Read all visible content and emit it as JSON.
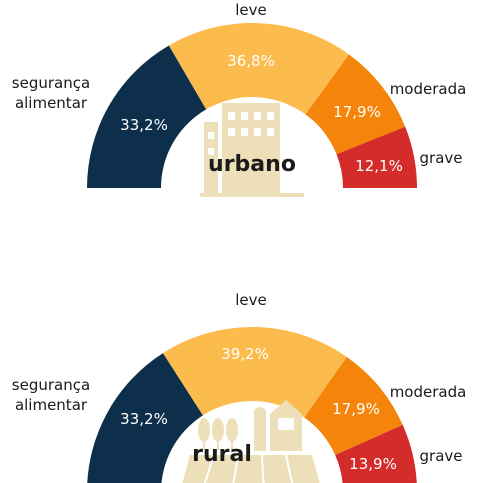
{
  "colors": {
    "seguranca_alimentar": "#0d2f4b",
    "leve": "#fbbb4d",
    "moderada": "#f4840a",
    "grave": "#d42c2a",
    "icon": "#eddfb7",
    "text_dark": "#1a1a1a",
    "text_light": "#ffffff"
  },
  "icons": {
    "urbano": "city-buildings-icon",
    "rural": "farm-field-icon"
  },
  "chart_data": [
    {
      "type": "pie",
      "title": "urbano",
      "categories": [
        "segurança alimentar",
        "leve",
        "moderada",
        "grave"
      ],
      "values": [
        33.2,
        36.8,
        17.9,
        12.1
      ],
      "value_labels": [
        "33,2%",
        "36,8%",
        "17,9%",
        "12,1%"
      ],
      "category_labels": [
        [
          "segurança",
          "alimentar"
        ],
        [
          "leve"
        ],
        [
          "moderada"
        ],
        [
          "grave"
        ]
      ]
    },
    {
      "type": "pie",
      "title": "rural",
      "categories": [
        "segurança alimentar",
        "leve",
        "moderada",
        "grave"
      ],
      "values": [
        33.2,
        39.2,
        17.9,
        13.9
      ],
      "value_labels": [
        "33,2%",
        "39,2%",
        "17,9%",
        "13,9%"
      ],
      "category_labels": [
        [
          "segurança",
          "alimentar"
        ],
        [
          "leve"
        ],
        [
          "moderada"
        ],
        [
          "grave"
        ]
      ]
    }
  ]
}
